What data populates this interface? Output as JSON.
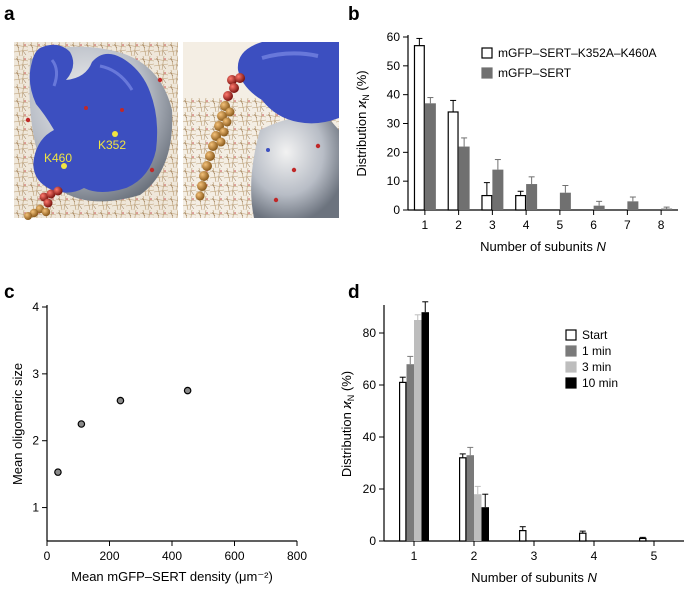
{
  "panels": {
    "a": {
      "letter": "a",
      "labels": [
        "K460",
        "K352"
      ],
      "colors": {
        "surface": "#3c4fc0",
        "protein": "#c9ced6",
        "lipid_tail": "#c08a3e",
        "lipid_head": "#b0302a",
        "residue_marker": "#f0e442",
        "label": "#f0e442"
      }
    },
    "b": {
      "letter": "b"
    },
    "c": {
      "letter": "c"
    },
    "d": {
      "letter": "d"
    }
  },
  "chart_data": [
    {
      "panel": "b",
      "type": "bar",
      "xlabel": "Number of subunits N",
      "ylabel": "Distribution xN (%)",
      "categories": [
        "1",
        "2",
        "3",
        "4",
        "5",
        "6",
        "7",
        "8"
      ],
      "ylim": [
        0,
        60
      ],
      "yticks": [
        "0",
        "10",
        "20",
        "30",
        "40",
        "50",
        "60"
      ],
      "legend_position": "top-right",
      "series": [
        {
          "name": "mGFP–SERT–K352A–K460A",
          "color": "#ffffff",
          "stroke": "#000000",
          "values": [
            57,
            34,
            5,
            5,
            0,
            0,
            0,
            0
          ],
          "errors": [
            2.5,
            4,
            4.5,
            1.5,
            0,
            0,
            0,
            0
          ]
        },
        {
          "name": "mGFP–SERT",
          "color": "#707070",
          "stroke": "#707070",
          "values": [
            37,
            22,
            14,
            9,
            6,
            1.5,
            3,
            0.5
          ],
          "errors": [
            2,
            3,
            3.5,
            2.5,
            2.5,
            1.5,
            1.5,
            0.5
          ]
        }
      ]
    },
    {
      "panel": "c",
      "type": "scatter",
      "xlabel": "Mean mGFP–SERT density (μm⁻²)",
      "ylabel": "Mean oligomeric size",
      "xlim": [
        0,
        800
      ],
      "ylim": [
        0.5,
        4
      ],
      "xticks": [
        "0",
        "200",
        "400",
        "600",
        "800"
      ],
      "yticks": [
        "1",
        "2",
        "3",
        "4"
      ],
      "points": [
        {
          "x": 35,
          "y": 1.53
        },
        {
          "x": 110,
          "y": 2.25
        },
        {
          "x": 235,
          "y": 2.6
        },
        {
          "x": 450,
          "y": 2.75
        }
      ],
      "marker_color": "#8a8a8a"
    },
    {
      "panel": "d",
      "type": "bar",
      "xlabel": "Number of subunits N",
      "ylabel": "Distribution xN (%)",
      "categories": [
        "1",
        "2",
        "3",
        "4",
        "5"
      ],
      "ylim": [
        0,
        90
      ],
      "yticks": [
        "0",
        "20",
        "40",
        "60",
        "80"
      ],
      "legend_position": "top-right",
      "series": [
        {
          "name": "Start",
          "color": "#ffffff",
          "stroke": "#000000",
          "values": [
            61,
            32,
            4,
            3,
            1
          ],
          "errors": [
            2,
            1.5,
            1.5,
            0.8,
            0.4
          ]
        },
        {
          "name": "1 min",
          "color": "#7a7a7a",
          "stroke": "#7a7a7a",
          "values": [
            68,
            33,
            0,
            0,
            0
          ],
          "errors": [
            3,
            3,
            0,
            0,
            0
          ]
        },
        {
          "name": "3 min",
          "color": "#bdbdbd",
          "stroke": "#bdbdbd",
          "values": [
            85,
            18,
            0,
            0,
            0
          ],
          "errors": [
            2,
            3,
            0,
            0,
            0
          ]
        },
        {
          "name": "10 min",
          "color": "#000000",
          "stroke": "#000000",
          "values": [
            88,
            13,
            0,
            0,
            0
          ],
          "errors": [
            4,
            5,
            0,
            0,
            0
          ]
        }
      ]
    }
  ]
}
